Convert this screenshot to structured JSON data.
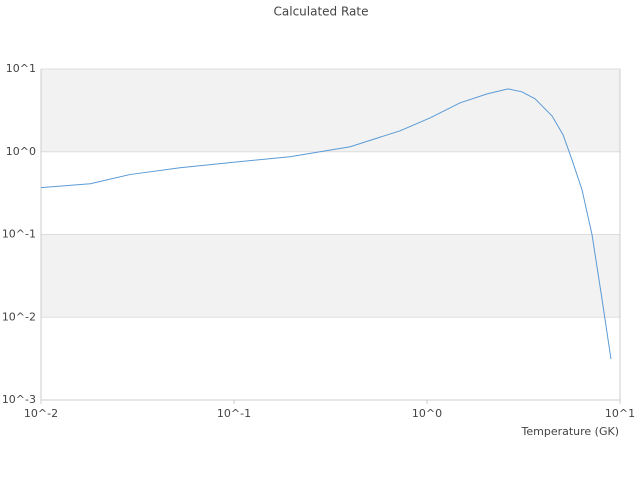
{
  "chart_data": {
    "type": "line",
    "title": "Calculated Rate",
    "x_label": "Temperature (GK)",
    "x": [
      0.01,
      0.018,
      0.0289,
      0.0525,
      0.0953,
      0.195,
      0.4,
      0.725,
      1.04,
      1.48,
      2.05,
      2.63,
      3.1,
      3.63,
      4.45,
      5.07,
      5.64,
      6.35,
      7.16,
      8.07,
      8.98
    ],
    "series": [
      {
        "name": "Rate",
        "color": "#5b9bd5",
        "values": [
          0.368,
          0.41,
          0.53,
          0.64,
          0.74,
          0.87,
          1.15,
          1.79,
          2.57,
          3.89,
          5.0,
          5.75,
          5.3,
          4.36,
          2.7,
          1.6,
          0.8,
          0.35,
          0.1,
          0.0165,
          0.00312
        ]
      }
    ],
    "xlim": [
      0.01,
      10
    ],
    "ylim": [
      0.001,
      10
    ],
    "xticks": [
      {
        "value": 0.01,
        "label": "10^-2"
      },
      {
        "value": 0.1,
        "label": "10^-1"
      },
      {
        "value": 1,
        "label": "10^0"
      },
      {
        "value": 10,
        "label": "10^1"
      }
    ],
    "yticks": [
      {
        "value": 0.001,
        "label": "10^-3"
      },
      {
        "value": 0.01,
        "label": "10^-2"
      },
      {
        "value": 0.1,
        "label": "10^-1"
      },
      {
        "value": 1,
        "label": "10^0"
      },
      {
        "value": 10,
        "label": "10^1"
      }
    ],
    "xscale": "log",
    "yscale": "log",
    "grid": true
  }
}
